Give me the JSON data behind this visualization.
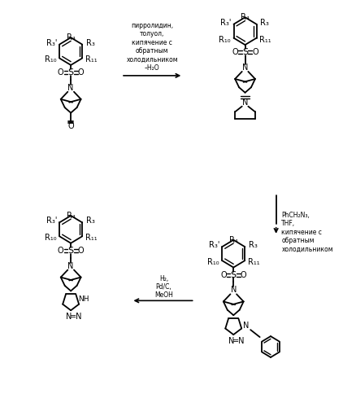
{
  "background_color": "#ffffff",
  "rxn1_label": "пирролидин,\nтолуол,\nкипячение с\nобратным\nхолодильником\n–H₂O",
  "rxn2_label": "PhCH₂N₃,\nTHF,\nкипячение с\nобратным\nхолодильником",
  "rxn3_label": "H₂,\nPd/C,\nMeOH"
}
